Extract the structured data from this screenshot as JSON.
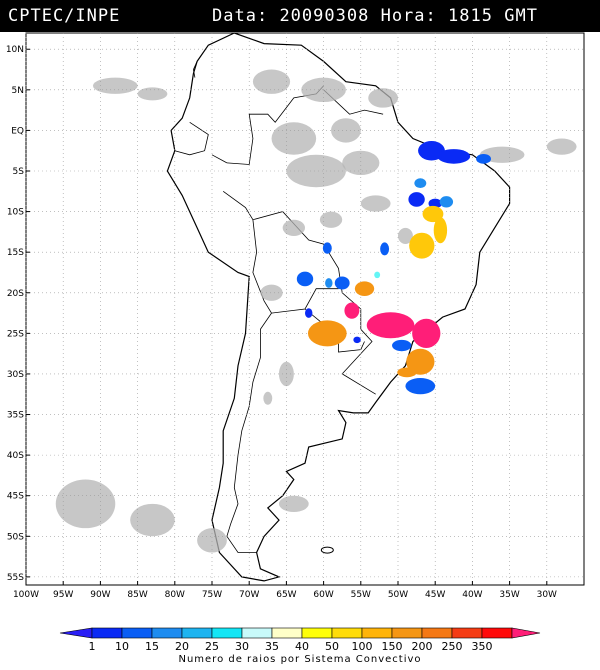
{
  "header": {
    "source": "CPTEC/INPE",
    "data_label": "Data:",
    "date": "20090308",
    "hora_label": "Hora:",
    "time": "1815",
    "tz": "GMT"
  },
  "map": {
    "lon_range": [
      -100,
      -25
    ],
    "lat_range": [
      -56,
      12
    ],
    "lat_ticks": [
      {
        "lat": 10,
        "label": "10N"
      },
      {
        "lat": 5,
        "label": "5N"
      },
      {
        "lat": 0,
        "label": "EQ"
      },
      {
        "lat": -5,
        "label": "5S"
      },
      {
        "lat": -10,
        "label": "10S"
      },
      {
        "lat": -15,
        "label": "15S"
      },
      {
        "lat": -20,
        "label": "20S"
      },
      {
        "lat": -25,
        "label": "25S"
      },
      {
        "lat": -30,
        "label": "30S"
      },
      {
        "lat": -35,
        "label": "35S"
      },
      {
        "lat": -40,
        "label": "40S"
      },
      {
        "lat": -45,
        "label": "45S"
      },
      {
        "lat": -50,
        "label": "50S"
      },
      {
        "lat": -55,
        "label": "55S"
      }
    ],
    "lon_ticks": [
      {
        "lon": -100,
        "label": "100W"
      },
      {
        "lon": -95,
        "label": "95W"
      },
      {
        "lon": -90,
        "label": "90W"
      },
      {
        "lon": -85,
        "label": "85W"
      },
      {
        "lon": -80,
        "label": "80W"
      },
      {
        "lon": -75,
        "label": "75W"
      },
      {
        "lon": -70,
        "label": "70W"
      },
      {
        "lon": -65,
        "label": "65W"
      },
      {
        "lon": -60,
        "label": "60W"
      },
      {
        "lon": -55,
        "label": "55W"
      },
      {
        "lon": -50,
        "label": "50W"
      },
      {
        "lon": -45,
        "label": "45W"
      },
      {
        "lon": -40,
        "label": "40W"
      },
      {
        "lon": -35,
        "label": "35W"
      },
      {
        "lon": -30,
        "label": "30W"
      }
    ],
    "grid": true,
    "land_color": "#ffffff",
    "border_color": "#000000",
    "cloud_color": "#b4b4b4",
    "convective_systems": [
      {
        "lon": -45.5,
        "lat": -2.5,
        "rx": 1.8,
        "ry": 1.2,
        "color": "#0a2af5"
      },
      {
        "lon": -42.5,
        "lat": -3.2,
        "rx": 2.2,
        "ry": 0.9,
        "color": "#0a2af5"
      },
      {
        "lon": -38.5,
        "lat": -3.5,
        "rx": 1.0,
        "ry": 0.6,
        "color": "#0a5ef5"
      },
      {
        "lon": -47.0,
        "lat": -6.5,
        "rx": 0.8,
        "ry": 0.6,
        "color": "#1e8cf0"
      },
      {
        "lon": -47.5,
        "lat": -8.5,
        "rx": 1.1,
        "ry": 0.9,
        "color": "#0a2af5"
      },
      {
        "lon": -45.0,
        "lat": -9.0,
        "rx": 0.9,
        "ry": 0.6,
        "color": "#0a2af5"
      },
      {
        "lon": -43.5,
        "lat": -8.8,
        "rx": 0.9,
        "ry": 0.7,
        "color": "#1e8cf0"
      },
      {
        "lon": -45.3,
        "lat": -10.3,
        "rx": 1.4,
        "ry": 1.0,
        "color": "#ffc80a"
      },
      {
        "lon": -44.3,
        "lat": -12.3,
        "rx": 0.9,
        "ry": 1.6,
        "color": "#ffc80a"
      },
      {
        "lon": -46.8,
        "lat": -14.2,
        "rx": 1.7,
        "ry": 1.6,
        "color": "#ffc80a"
      },
      {
        "lon": -51.8,
        "lat": -14.6,
        "rx": 0.6,
        "ry": 0.8,
        "color": "#0a5ef5"
      },
      {
        "lon": -59.5,
        "lat": -14.5,
        "rx": 0.6,
        "ry": 0.7,
        "color": "#0a5ef5"
      },
      {
        "lon": -62.5,
        "lat": -18.3,
        "rx": 1.1,
        "ry": 0.9,
        "color": "#0a5ef5"
      },
      {
        "lon": -59.3,
        "lat": -18.8,
        "rx": 0.5,
        "ry": 0.6,
        "color": "#1e8cf0"
      },
      {
        "lon": -57.5,
        "lat": -18.8,
        "rx": 1.0,
        "ry": 0.8,
        "color": "#0a5ef5"
      },
      {
        "lon": -54.5,
        "lat": -19.5,
        "rx": 1.3,
        "ry": 0.9,
        "color": "#f59614"
      },
      {
        "lon": -52.8,
        "lat": -17.8,
        "rx": 0.4,
        "ry": 0.4,
        "color": "#64f5f5"
      },
      {
        "lon": -62.0,
        "lat": -22.5,
        "rx": 0.5,
        "ry": 0.6,
        "color": "#0a2af5"
      },
      {
        "lon": -56.2,
        "lat": -22.2,
        "rx": 1.0,
        "ry": 1.0,
        "color": "#ff1e78"
      },
      {
        "lon": -51.0,
        "lat": -24.0,
        "rx": 3.2,
        "ry": 1.6,
        "color": "#ff1e78"
      },
      {
        "lon": -46.2,
        "lat": -25.0,
        "rx": 1.9,
        "ry": 1.8,
        "color": "#ff1e78"
      },
      {
        "lon": -59.5,
        "lat": -25.0,
        "rx": 2.6,
        "ry": 1.6,
        "color": "#f59614"
      },
      {
        "lon": -55.5,
        "lat": -25.8,
        "rx": 0.5,
        "ry": 0.4,
        "color": "#0a2af5"
      },
      {
        "lon": -49.5,
        "lat": -26.5,
        "rx": 1.3,
        "ry": 0.7,
        "color": "#0a5ef5"
      },
      {
        "lon": -47.0,
        "lat": -28.5,
        "rx": 1.9,
        "ry": 1.6,
        "color": "#f59614"
      },
      {
        "lon": -48.8,
        "lat": -29.8,
        "rx": 1.3,
        "ry": 0.6,
        "color": "#f59614"
      },
      {
        "lon": -47.0,
        "lat": -31.5,
        "rx": 2.0,
        "ry": 1.0,
        "color": "#0a5ef5"
      }
    ]
  },
  "colorbar": {
    "arrow_left_color": "#2a1ef5",
    "arrow_right_color": "#ff1e78",
    "bins": [
      {
        "label": "1",
        "color": "#0a2af5"
      },
      {
        "label": "10",
        "color": "#0a5ef5"
      },
      {
        "label": "15",
        "color": "#1e8cf0"
      },
      {
        "label": "20",
        "color": "#1eb4f0"
      },
      {
        "label": "25",
        "color": "#14e6f5"
      },
      {
        "label": "30",
        "color": "#c8fafa"
      },
      {
        "label": "35",
        "color": "#ffffc8"
      },
      {
        "label": "40",
        "color": "#ffff0a"
      },
      {
        "label": "50",
        "color": "#ffdc0a"
      },
      {
        "label": "100",
        "color": "#ffb40a"
      },
      {
        "label": "150",
        "color": "#f59614"
      },
      {
        "label": "200",
        "color": "#f57814"
      },
      {
        "label": "250",
        "color": "#f53c14"
      },
      {
        "label": "350",
        "color": "#ff0a0a"
      }
    ],
    "caption": "Numero de raios por Sistema Convectivo"
  }
}
